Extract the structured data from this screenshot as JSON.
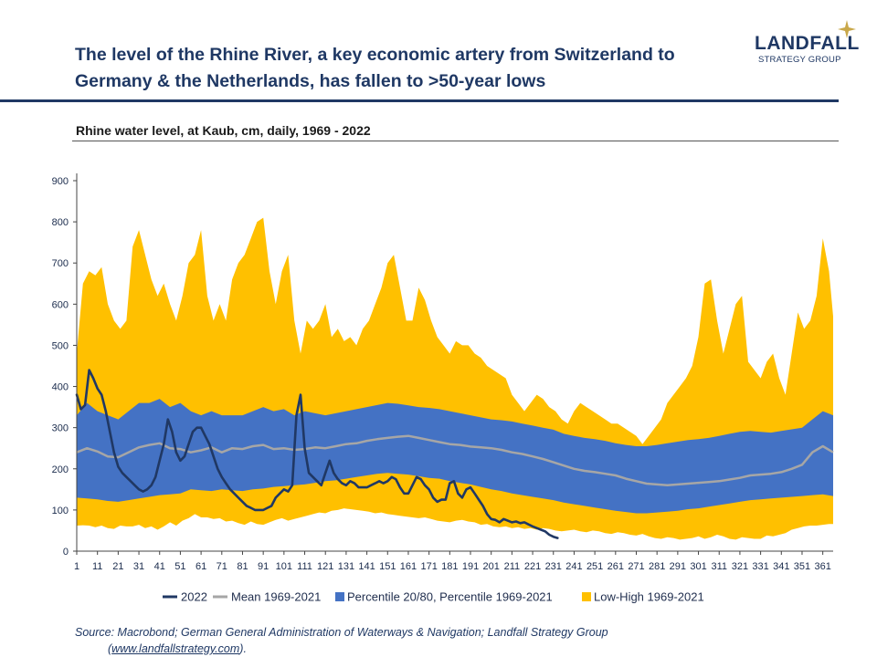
{
  "header": {
    "title_line1": "The level of the Rhine River, a key economic artery from Switzerland to",
    "title_line2": "Germany & the Netherlands, has fallen to >50-year lows",
    "logo_name": "LANDFALL",
    "logo_sub": "STRATEGY GROUP"
  },
  "source": {
    "line1": "Source: Macrobond; German General Administration of Waterways & Navigation; Landfall Strategy Group",
    "url": "www.landfallstrategy.com",
    "open": "(",
    "close": ")."
  },
  "colors": {
    "navy": "#1f3864",
    "line2022": "#203864",
    "mean": "#a6a6a6",
    "pct_band": "#4472c4",
    "lowhigh_band": "#ffc000"
  },
  "chart_data": {
    "type": "area",
    "title": "Rhine water level, at Kaub, cm, daily, 1969 - 2022",
    "xlabel": "",
    "ylabel": "",
    "xlim": [
      1,
      366
    ],
    "ylim": [
      0,
      900
    ],
    "yticks": [
      0,
      100,
      200,
      300,
      400,
      500,
      600,
      700,
      800,
      900
    ],
    "xticks": [
      1,
      11,
      21,
      31,
      41,
      51,
      61,
      71,
      81,
      91,
      101,
      111,
      121,
      131,
      141,
      151,
      161,
      171,
      181,
      191,
      201,
      211,
      221,
      231,
      241,
      251,
      261,
      271,
      281,
      291,
      301,
      311,
      321,
      331,
      341,
      351,
      361
    ],
    "legend": {
      "position": "bottom",
      "items": [
        {
          "name": "2022",
          "kind": "line",
          "color": "#203864"
        },
        {
          "name": "Mean 1969-2021",
          "kind": "line",
          "color": "#a6a6a6"
        },
        {
          "name": "Percentile 20/80, Percentile 1969-2021",
          "kind": "box",
          "color": "#4472c4"
        },
        {
          "name": "Low-High 1969-2021",
          "kind": "box",
          "color": "#ffc000"
        }
      ]
    },
    "lowhigh": {
      "name": "Low-High 1969-2021",
      "x": [
        1,
        4,
        7,
        10,
        13,
        16,
        19,
        22,
        25,
        28,
        31,
        34,
        37,
        40,
        43,
        46,
        49,
        52,
        55,
        58,
        61,
        64,
        67,
        70,
        73,
        76,
        79,
        82,
        85,
        88,
        91,
        94,
        97,
        100,
        103,
        106,
        109,
        112,
        115,
        118,
        121,
        124,
        127,
        130,
        133,
        136,
        139,
        142,
        145,
        148,
        151,
        154,
        157,
        160,
        163,
        166,
        169,
        172,
        175,
        178,
        181,
        184,
        187,
        190,
        193,
        196,
        199,
        202,
        205,
        208,
        211,
        214,
        217,
        220,
        223,
        226,
        229,
        232,
        235,
        238,
        241,
        244,
        247,
        250,
        253,
        256,
        259,
        262,
        265,
        268,
        271,
        274,
        277,
        280,
        283,
        286,
        289,
        292,
        295,
        298,
        301,
        304,
        307,
        310,
        313,
        316,
        319,
        322,
        325,
        328,
        331,
        334,
        337,
        340,
        343,
        346,
        349,
        352,
        355,
        358,
        361,
        364,
        366
      ],
      "low": [
        62,
        63,
        62,
        58,
        62,
        56,
        54,
        62,
        60,
        60,
        64,
        56,
        60,
        52,
        60,
        70,
        62,
        74,
        80,
        90,
        82,
        82,
        78,
        80,
        72,
        74,
        68,
        64,
        72,
        66,
        64,
        70,
        76,
        80,
        74,
        78,
        82,
        86,
        90,
        94,
        92,
        98,
        100,
        104,
        102,
        100,
        98,
        96,
        92,
        94,
        90,
        88,
        86,
        84,
        82,
        80,
        82,
        78,
        74,
        72,
        70,
        74,
        76,
        72,
        70,
        64,
        66,
        60,
        58,
        60,
        56,
        58,
        54,
        56,
        52,
        56,
        54,
        50,
        48,
        50,
        52,
        48,
        46,
        50,
        48,
        44,
        42,
        46,
        44,
        40,
        38,
        42,
        36,
        32,
        30,
        34,
        32,
        28,
        30,
        32,
        36,
        30,
        34,
        40,
        36,
        30,
        28,
        34,
        32,
        30,
        30,
        38,
        36,
        40,
        44,
        52,
        56,
        60,
        62,
        62,
        64,
        66,
        66
      ],
      "high": [
        480,
        650,
        680,
        670,
        690,
        600,
        560,
        540,
        560,
        740,
        780,
        720,
        660,
        620,
        650,
        600,
        560,
        620,
        700,
        720,
        780,
        620,
        560,
        600,
        560,
        660,
        700,
        720,
        760,
        800,
        810,
        680,
        600,
        680,
        720,
        560,
        480,
        560,
        540,
        560,
        600,
        520,
        540,
        510,
        520,
        500,
        540,
        560,
        600,
        640,
        700,
        720,
        640,
        560,
        560,
        640,
        610,
        560,
        520,
        500,
        480,
        510,
        500,
        500,
        480,
        470,
        450,
        440,
        430,
        420,
        380,
        360,
        340,
        360,
        380,
        370,
        350,
        340,
        320,
        310,
        340,
        360,
        350,
        340,
        330,
        320,
        310,
        310,
        300,
        290,
        280,
        260,
        280,
        300,
        320,
        360,
        380,
        400,
        420,
        450,
        520,
        650,
        660,
        560,
        480,
        540,
        600,
        620,
        460,
        440,
        420,
        460,
        480,
        420,
        380,
        480,
        580,
        540,
        560,
        620,
        760,
        680,
        570
      ]
    },
    "pct": {
      "name": "Percentile 20/80, Percentile 1969-2021",
      "x": [
        1,
        6,
        11,
        16,
        21,
        26,
        31,
        36,
        41,
        46,
        51,
        56,
        61,
        66,
        71,
        76,
        81,
        86,
        91,
        96,
        101,
        106,
        111,
        116,
        121,
        126,
        131,
        136,
        141,
        146,
        151,
        156,
        161,
        166,
        171,
        176,
        181,
        186,
        191,
        196,
        201,
        206,
        211,
        216,
        221,
        226,
        231,
        236,
        241,
        246,
        251,
        256,
        261,
        266,
        271,
        276,
        281,
        286,
        291,
        296,
        301,
        306,
        311,
        316,
        321,
        326,
        331,
        336,
        341,
        346,
        351,
        356,
        361,
        366
      ],
      "p20": [
        130,
        128,
        126,
        122,
        120,
        124,
        128,
        132,
        136,
        138,
        140,
        150,
        148,
        146,
        150,
        148,
        146,
        150,
        152,
        156,
        158,
        160,
        162,
        166,
        170,
        172,
        176,
        180,
        184,
        188,
        190,
        188,
        186,
        182,
        178,
        176,
        170,
        166,
        162,
        156,
        150,
        146,
        140,
        136,
        132,
        128,
        124,
        118,
        114,
        110,
        106,
        102,
        98,
        95,
        92,
        92,
        94,
        96,
        98,
        102,
        104,
        108,
        112,
        116,
        120,
        124,
        126,
        128,
        130,
        132,
        134,
        136,
        138,
        134
      ],
      "p80": [
        330,
        360,
        340,
        330,
        320,
        340,
        360,
        360,
        370,
        350,
        360,
        340,
        330,
        340,
        330,
        330,
        330,
        340,
        350,
        340,
        345,
        330,
        340,
        335,
        330,
        335,
        340,
        345,
        350,
        355,
        360,
        358,
        354,
        350,
        348,
        345,
        340,
        335,
        330,
        325,
        320,
        318,
        315,
        310,
        305,
        300,
        295,
        285,
        280,
        275,
        272,
        268,
        262,
        258,
        255,
        255,
        258,
        262,
        266,
        270,
        272,
        275,
        280,
        285,
        290,
        292,
        290,
        288,
        292,
        296,
        300,
        320,
        340,
        330
      ]
    },
    "mean": {
      "name": "Mean 1969-2021",
      "x": [
        1,
        6,
        11,
        16,
        21,
        26,
        31,
        36,
        41,
        46,
        51,
        56,
        61,
        66,
        71,
        76,
        81,
        86,
        91,
        96,
        101,
        106,
        111,
        116,
        121,
        126,
        131,
        136,
        141,
        146,
        151,
        156,
        161,
        166,
        171,
        176,
        181,
        186,
        191,
        196,
        201,
        206,
        211,
        216,
        221,
        226,
        231,
        236,
        241,
        246,
        251,
        256,
        261,
        266,
        271,
        276,
        281,
        286,
        291,
        296,
        301,
        306,
        311,
        316,
        321,
        326,
        331,
        336,
        341,
        346,
        351,
        356,
        361,
        366
      ],
      "y": [
        240,
        250,
        242,
        230,
        228,
        240,
        252,
        258,
        262,
        250,
        248,
        240,
        245,
        252,
        240,
        250,
        248,
        255,
        258,
        248,
        250,
        246,
        248,
        252,
        250,
        255,
        260,
        262,
        268,
        272,
        275,
        278,
        280,
        275,
        270,
        265,
        260,
        258,
        254,
        252,
        250,
        246,
        240,
        236,
        230,
        224,
        216,
        208,
        200,
        195,
        192,
        188,
        184,
        176,
        170,
        164,
        162,
        160,
        162,
        164,
        166,
        168,
        170,
        174,
        178,
        184,
        186,
        188,
        192,
        200,
        210,
        240,
        255,
        240
      ]
    },
    "series_2022": {
      "name": "2022",
      "x": [
        1,
        3,
        5,
        7,
        9,
        11,
        13,
        15,
        17,
        19,
        21,
        23,
        25,
        27,
        29,
        31,
        33,
        35,
        37,
        39,
        41,
        43,
        45,
        47,
        49,
        51,
        53,
        55,
        57,
        59,
        61,
        63,
        65,
        67,
        69,
        71,
        73,
        75,
        77,
        79,
        81,
        83,
        85,
        87,
        89,
        91,
        93,
        95,
        97,
        99,
        101,
        103,
        105,
        107,
        109,
        111,
        113,
        115,
        117,
        119,
        121,
        123,
        125,
        127,
        129,
        131,
        133,
        135,
        137,
        139,
        141,
        143,
        145,
        147,
        149,
        151,
        153,
        155,
        157,
        159,
        161,
        163,
        165,
        167,
        169,
        171,
        173,
        175,
        177,
        179,
        181,
        183,
        185,
        187,
        189,
        191,
        193,
        195,
        197,
        199,
        201,
        203,
        205,
        207,
        209,
        211,
        213,
        215,
        217,
        219,
        221,
        223,
        225,
        227,
        229,
        231,
        233
      ],
      "y": [
        380,
        345,
        355,
        440,
        420,
        395,
        380,
        340,
        290,
        240,
        205,
        190,
        180,
        170,
        160,
        150,
        145,
        150,
        160,
        180,
        220,
        260,
        320,
        290,
        240,
        220,
        230,
        260,
        290,
        300,
        300,
        280,
        260,
        230,
        200,
        180,
        165,
        150,
        140,
        130,
        120,
        110,
        105,
        100,
        100,
        100,
        105,
        110,
        130,
        140,
        150,
        145,
        160,
        330,
        380,
        250,
        190,
        180,
        170,
        160,
        190,
        220,
        190,
        175,
        165,
        160,
        170,
        165,
        155,
        155,
        155,
        160,
        165,
        170,
        165,
        170,
        180,
        175,
        155,
        140,
        140,
        160,
        180,
        175,
        160,
        150,
        130,
        120,
        125,
        125,
        165,
        170,
        140,
        130,
        150,
        155,
        140,
        125,
        110,
        90,
        78,
        76,
        70,
        78,
        74,
        70,
        72,
        68,
        70,
        65,
        60,
        56,
        52,
        48,
        40,
        35,
        32
      ]
    }
  }
}
